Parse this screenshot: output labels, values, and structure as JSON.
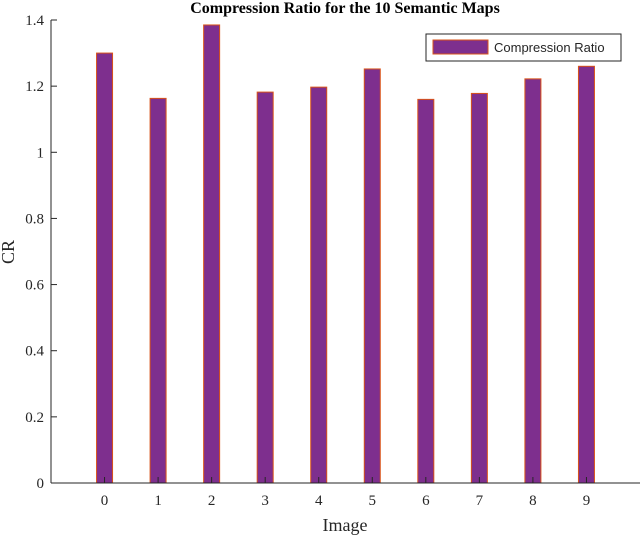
{
  "chart_data": {
    "type": "bar",
    "title": "Compression Ratio for the 10 Semantic Maps",
    "xlabel": "Image",
    "ylabel": "CR",
    "categories": [
      "0",
      "1",
      "2",
      "3",
      "4",
      "5",
      "6",
      "7",
      "8",
      "9"
    ],
    "series": [
      {
        "name": "Compression Ratio",
        "values": [
          1.3,
          1.163,
          1.385,
          1.182,
          1.197,
          1.252,
          1.16,
          1.178,
          1.222,
          1.26
        ]
      }
    ],
    "ylim": [
      0,
      1.4
    ],
    "yticks": [
      0,
      0.2,
      0.4,
      0.6,
      0.8,
      1,
      1.2,
      1.4
    ],
    "ytick_labels": [
      "0",
      "0.2",
      "0.4",
      "0.6",
      "0.8",
      "1",
      "1.2",
      "1.4"
    ],
    "xlim": [
      -1,
      10
    ],
    "grid": false,
    "legend": "top-right",
    "bar_color": "#7e2f8e",
    "bar_edge_color": "#d95319",
    "axis_color": "#262626"
  }
}
